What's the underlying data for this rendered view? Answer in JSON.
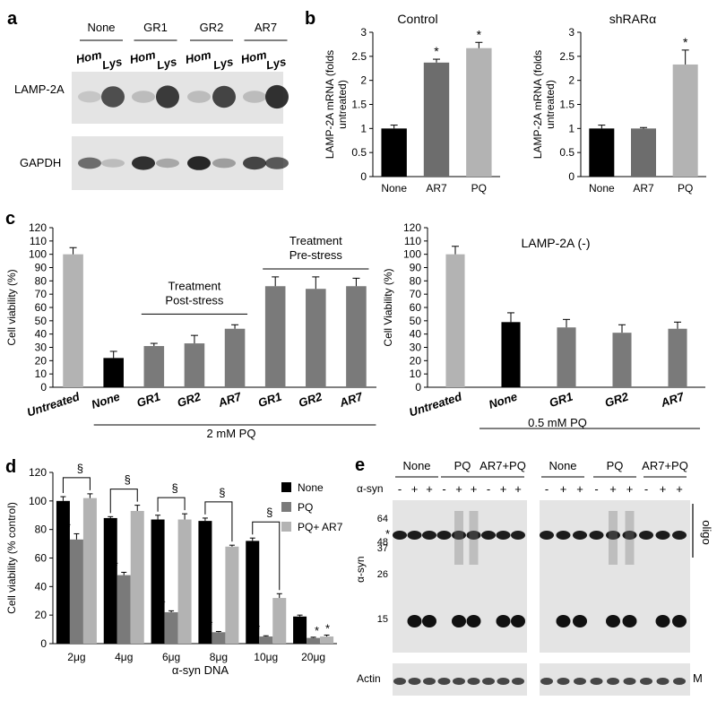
{
  "colors": {
    "black": "#000000",
    "dark_gray": "#6d6d6d",
    "mid_gray": "#7a7a7a",
    "light_gray": "#b3b3b3",
    "blot_bg": "#e4e4e4",
    "band": "#1c1c1c"
  },
  "panels": {
    "a": {
      "label": "a",
      "groups": [
        "None",
        "GR1",
        "GR2",
        "AR7"
      ],
      "lanes": [
        "Hom",
        "Lys",
        "Hom",
        "Lys",
        "Hom",
        "Lys",
        "Hom",
        "Lys"
      ],
      "blot_labels": [
        "LAMP-2A",
        "GAPDH"
      ],
      "lamp_intensity": [
        0.15,
        0.75,
        0.2,
        0.85,
        0.2,
        0.8,
        0.2,
        0.9
      ],
      "gapdh_intensity": [
        0.6,
        0.2,
        0.9,
        0.3,
        0.95,
        0.35,
        0.8,
        0.7
      ]
    },
    "e": {
      "label": "e",
      "groups": [
        "None",
        "PQ",
        "AR7+PQ",
        "None",
        "PQ",
        "AR7+PQ"
      ],
      "asyn_row_label": "α-syn",
      "asyn_signs": [
        "-",
        "+",
        "+",
        "-",
        "+",
        "+",
        "-",
        "+",
        "+",
        "-",
        "+",
        "+",
        "-",
        "+",
        "+",
        "-",
        "+",
        "+"
      ],
      "blot_ylabel": "α-syn",
      "mw_markers": [
        "64",
        "48",
        "37",
        "26",
        "15"
      ],
      "star": "*",
      "oligo_label": "oligo",
      "actin_label": "Actin",
      "m_label": "M"
    }
  },
  "chart_data": [
    {
      "id": "b-control",
      "panel_label": "b",
      "type": "bar",
      "title": "Control",
      "ylabel": "LAMP-2A mRNA (folds untreated)",
      "xlabel": "",
      "ylim": [
        0,
        3
      ],
      "yticks": [
        "0",
        "0.5",
        "1",
        "1.5",
        "2",
        "2.5",
        "3"
      ],
      "categories": [
        "None",
        "AR7",
        "PQ"
      ],
      "values": [
        1.0,
        2.37,
        2.67
      ],
      "errors": [
        0.07,
        0.07,
        0.12
      ],
      "bar_colors": [
        "#000000",
        "#6d6d6d",
        "#b3b3b3"
      ],
      "annotations": [
        "",
        "*",
        "*"
      ]
    },
    {
      "id": "b-shrar",
      "type": "bar",
      "title": "shRARα",
      "ylabel": "LAMP-2A mRNA (folds untreated)",
      "xlabel": "",
      "ylim": [
        0,
        3
      ],
      "yticks": [
        "0",
        "0.5",
        "1",
        "1.5",
        "2",
        "2.5",
        "3"
      ],
      "categories": [
        "None",
        "AR7",
        "PQ"
      ],
      "values": [
        1.0,
        1.0,
        2.33
      ],
      "errors": [
        0.07,
        0.02,
        0.3
      ],
      "bar_colors": [
        "#000000",
        "#6d6d6d",
        "#b3b3b3"
      ],
      "annotations": [
        "",
        "",
        "*"
      ]
    },
    {
      "id": "c-left",
      "panel_label": "c",
      "type": "bar",
      "title": "",
      "ylabel": "Cell viability (%)",
      "xlabel": "2 mM PQ",
      "ylim": [
        0,
        120
      ],
      "yticks": [
        "0",
        "10",
        "20",
        "30",
        "40",
        "50",
        "60",
        "70",
        "80",
        "90",
        "100",
        "110",
        "120"
      ],
      "categories": [
        "Untreated",
        "None",
        "GR1",
        "GR2",
        "AR7",
        "GR1",
        "GR2",
        "AR7"
      ],
      "values": [
        100,
        22,
        31,
        33,
        44,
        76,
        74,
        76
      ],
      "errors": [
        5,
        5,
        2,
        6,
        3,
        7,
        9,
        6
      ],
      "bar_colors": [
        "#b3b3b3",
        "#000000",
        "#7a7a7a",
        "#7a7a7a",
        "#7a7a7a",
        "#7a7a7a",
        "#7a7a7a",
        "#7a7a7a"
      ],
      "bracket_labels": [
        "Treatment",
        "Post-stress",
        "Treatment",
        "Pre-stress"
      ]
    },
    {
      "id": "c-right",
      "type": "bar",
      "title": "LAMP-2A (-)",
      "ylabel": "Cell Viability (%)",
      "xlabel": "0.5 mM PQ",
      "ylim": [
        0,
        120
      ],
      "yticks": [
        "0",
        "10",
        "20",
        "30",
        "40",
        "50",
        "60",
        "70",
        "80",
        "90",
        "100",
        "110",
        "120"
      ],
      "categories": [
        "Untreated",
        "None",
        "GR1",
        "GR2",
        "AR7"
      ],
      "values": [
        100,
        49,
        45,
        41,
        44
      ],
      "errors": [
        6,
        7,
        6,
        6,
        5
      ],
      "bar_colors": [
        "#b3b3b3",
        "#000000",
        "#7a7a7a",
        "#7a7a7a",
        "#7a7a7a"
      ]
    },
    {
      "id": "d",
      "panel_label": "d",
      "type": "bar",
      "title": "",
      "ylabel": "Cell viability (% control)",
      "xlabel": "α-syn DNA",
      "ylim": [
        0,
        120
      ],
      "yticks": [
        "0",
        "20",
        "40",
        "60",
        "80",
        "100",
        "120"
      ],
      "categories": [
        "2μg",
        "4μg",
        "6μg",
        "8μg",
        "10μg",
        "20μg"
      ],
      "legend_position": "top-right",
      "series": [
        {
          "name": "None",
          "color": "#000000",
          "values": [
            100,
            88,
            87,
            86,
            72,
            19
          ],
          "errors": [
            3,
            1,
            3,
            2,
            2,
            1
          ]
        },
        {
          "name": "PQ",
          "color": "#7a7a7a",
          "values": [
            73,
            48,
            22,
            8,
            5,
            4
          ],
          "errors": [
            4,
            2,
            1,
            0.5,
            0.5,
            0.5
          ]
        },
        {
          "name": "PQ+ AR7",
          "color": "#b3b3b3",
          "values": [
            102,
            93,
            87,
            68,
            32,
            5
          ],
          "errors": [
            3,
            4,
            4,
            1,
            3,
            1
          ]
        }
      ],
      "star_label": "*",
      "section_label": "§"
    }
  ]
}
